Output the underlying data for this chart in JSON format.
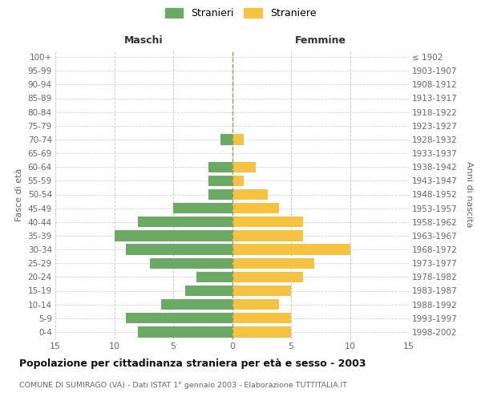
{
  "age_groups": [
    "0-4",
    "5-9",
    "10-14",
    "15-19",
    "20-24",
    "25-29",
    "30-34",
    "35-39",
    "40-44",
    "45-49",
    "50-54",
    "55-59",
    "60-64",
    "65-69",
    "70-74",
    "75-79",
    "80-84",
    "85-89",
    "90-94",
    "95-99",
    "100+"
  ],
  "birth_years": [
    "1998-2002",
    "1993-1997",
    "1988-1992",
    "1983-1987",
    "1978-1982",
    "1973-1977",
    "1968-1972",
    "1963-1967",
    "1958-1962",
    "1953-1957",
    "1948-1952",
    "1943-1947",
    "1938-1942",
    "1933-1937",
    "1928-1932",
    "1923-1927",
    "1918-1922",
    "1913-1917",
    "1908-1912",
    "1903-1907",
    "≤ 1902"
  ],
  "males": [
    8,
    9,
    6,
    4,
    3,
    7,
    9,
    10,
    8,
    5,
    2,
    2,
    2,
    0,
    1,
    0,
    0,
    0,
    0,
    0,
    0
  ],
  "females": [
    5,
    5,
    4,
    5,
    6,
    7,
    10,
    6,
    6,
    4,
    3,
    1,
    2,
    0,
    1,
    0,
    0,
    0,
    0,
    0,
    0
  ],
  "male_color": "#6aaa64",
  "female_color": "#f5c242",
  "male_label": "Stranieri",
  "female_label": "Straniere",
  "title": "Popolazione per cittadinanza straniera per età e sesso - 2003",
  "subtitle": "COMUNE DI SUMIRAGO (VA) - Dati ISTAT 1° gennaio 2003 - Elaborazione TUTTITALIA.IT",
  "header_left": "Maschi",
  "header_right": "Femmine",
  "ylabel_left": "Fasce di età",
  "ylabel_right": "Anni di nascita",
  "xlim": 15,
  "background_color": "#ffffff",
  "grid_color": "#cccccc",
  "centerline_color": "#999966",
  "text_color": "#666666",
  "title_color": "#111111"
}
